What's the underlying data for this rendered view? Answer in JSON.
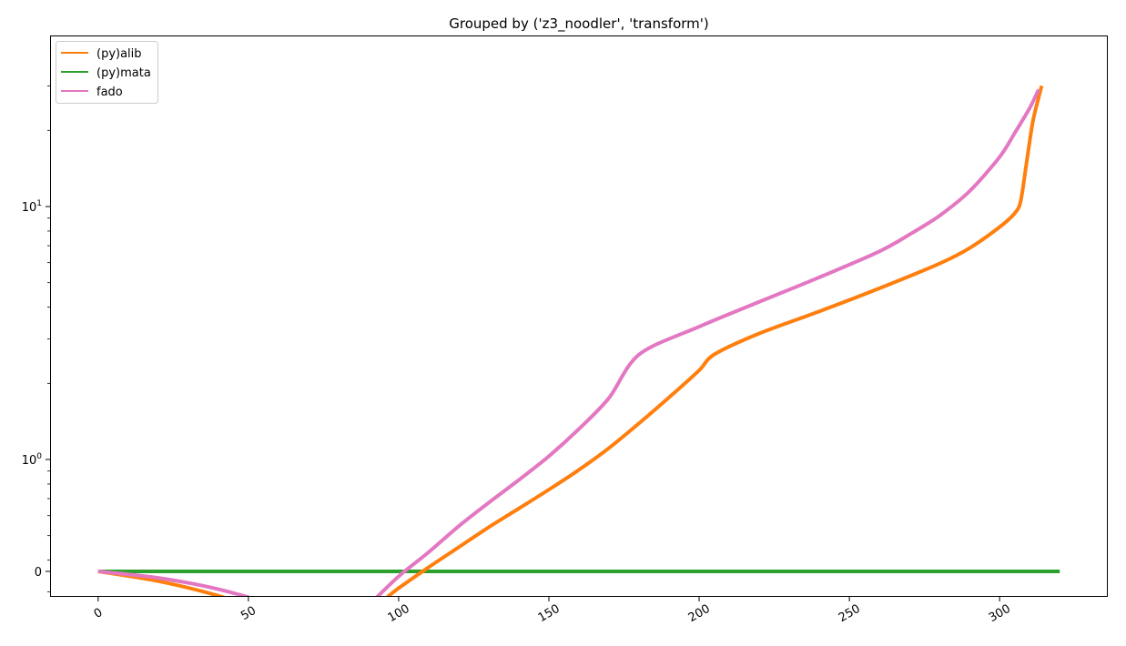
{
  "chart_data": {
    "type": "line",
    "title": "Grouped by ('z3_noodler', 'transform')",
    "xlabel": "",
    "ylabel": "",
    "xlim": [
      -16,
      336
    ],
    "x_ticks": [
      0,
      50,
      100,
      150,
      200,
      250,
      300
    ],
    "x_tick_labels": [
      "0",
      "50",
      "100",
      "150",
      "200",
      "250",
      "300"
    ],
    "y_scale": "symlog",
    "y_ticks": [
      {
        "value": 0,
        "label": "0"
      },
      {
        "value": 1,
        "label": "10^0"
      },
      {
        "value": 10,
        "label": "10^1"
      }
    ],
    "grid": false,
    "legend_position": "upper-left",
    "series": [
      {
        "name": "(py)alib",
        "color": "#ff7f0e",
        "points": [
          [
            0,
            0
          ],
          [
            20,
            0.03
          ],
          [
            40,
            0.075
          ],
          [
            60,
            0.135
          ],
          [
            80,
            0.21
          ],
          [
            100,
            0.31
          ],
          [
            110,
            0.375
          ],
          [
            120,
            0.45
          ],
          [
            130,
            0.54
          ],
          [
            140,
            0.64
          ],
          [
            150,
            0.76
          ],
          [
            160,
            0.91
          ],
          [
            170,
            1.11
          ],
          [
            180,
            1.39
          ],
          [
            190,
            1.76
          ],
          [
            200,
            2.25
          ],
          [
            205,
            2.6
          ],
          [
            220,
            3.15
          ],
          [
            240,
            3.85
          ],
          [
            260,
            4.75
          ],
          [
            280,
            5.95
          ],
          [
            290,
            6.85
          ],
          [
            300,
            8.3
          ],
          [
            305,
            9.4
          ],
          [
            307,
            10.5
          ],
          [
            309,
            15.0
          ],
          [
            311,
            21.5
          ],
          [
            313,
            27.0
          ],
          [
            314,
            30.0
          ]
        ]
      },
      {
        "name": "(py)mata",
        "color": "#2ca02c",
        "points": [
          [
            0,
            0
          ],
          [
            320,
            0
          ]
        ]
      },
      {
        "name": "fado",
        "color": "#e377c2",
        "points": [
          [
            0,
            0
          ],
          [
            20,
            0.02
          ],
          [
            40,
            0.055
          ],
          [
            60,
            0.11
          ],
          [
            80,
            0.205
          ],
          [
            90,
            0.265
          ],
          [
            100,
            0.345
          ],
          [
            110,
            0.43
          ],
          [
            120,
            0.545
          ],
          [
            130,
            0.675
          ],
          [
            140,
            0.83
          ],
          [
            150,
            1.03
          ],
          [
            160,
            1.32
          ],
          [
            170,
            1.75
          ],
          [
            180,
            2.6
          ],
          [
            200,
            3.35
          ],
          [
            220,
            4.2
          ],
          [
            240,
            5.25
          ],
          [
            260,
            6.65
          ],
          [
            270,
            7.75
          ],
          [
            280,
            9.2
          ],
          [
            290,
            11.5
          ],
          [
            300,
            15.7
          ],
          [
            305,
            19.5
          ],
          [
            310,
            24.5
          ],
          [
            313,
            29.0
          ]
        ]
      }
    ]
  }
}
